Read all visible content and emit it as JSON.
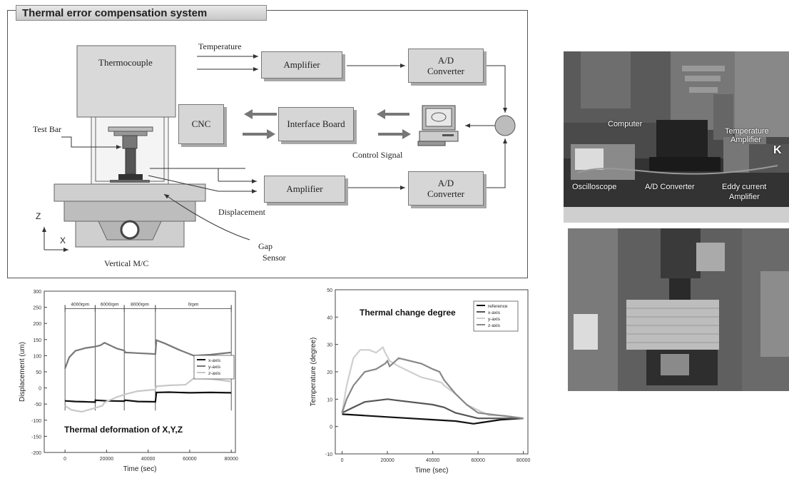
{
  "diagram": {
    "title": "Thermal error compensation system",
    "thermocouple": "Thermocouple",
    "temperature": "Temperature",
    "amplifier_top": "Amplifier",
    "adc_top_line1": "A/D",
    "adc_top_line2": "Converter",
    "cnc": "CNC",
    "interface_board": "Interface Board",
    "control_signal": "Control Signal",
    "test_bar": "Test Bar",
    "amplifier_bottom": "Amplifier",
    "adc_bottom_line1": "A/D",
    "adc_bottom_line2": "Converter",
    "displacement": "Displacement",
    "axis_z": "Z",
    "axis_x": "X",
    "gap_sensor_line1": "Gap",
    "gap_sensor_line2": "Sensor",
    "vertical_mc": "Vertical M/C"
  },
  "photos": {
    "computer": "Computer",
    "temperature_amplifier_line1": "Temperature",
    "temperature_amplifier_line2": "Amplifier",
    "ke": "K",
    "oscilloscope": "Oscilloscope",
    "ad_converter": "A/D Converter",
    "eddy_line1": "Eddy current",
    "eddy_line2": "Amplifier"
  },
  "chart_data": [
    {
      "type": "line",
      "annotation": "Thermal deformation of X,Y,Z",
      "xlabel": "Time (sec)",
      "ylabel": "Displacement (um)",
      "xlim": [
        -10000,
        82000
      ],
      "ylim": [
        -200,
        300
      ],
      "x_ticks": [
        "0",
        "20000",
        "40000",
        "60000",
        "80000"
      ],
      "y_ticks": [
        "300",
        "250",
        "200",
        "150",
        "100",
        "50",
        "0",
        "-50",
        "-100",
        "-150",
        "-200"
      ],
      "phase_labels": [
        "4000rpm",
        "6000rpm",
        "8000rpm",
        "0rpm"
      ],
      "phase_bounds": [
        0,
        14500,
        28500,
        43500,
        80000
      ],
      "series": [
        {
          "name": "x-axis",
          "color": "#111111",
          "x": [
            0,
            5000,
            10000,
            14500,
            14600,
            20000,
            28500,
            29000,
            35000,
            43500,
            44000,
            50000,
            60000,
            70000,
            80000
          ],
          "y": [
            -40,
            -42,
            -43,
            -44,
            -38,
            -40,
            -41,
            -38,
            -42,
            -43,
            -14,
            -13,
            -15,
            -14,
            -15
          ]
        },
        {
          "name": "y-axis",
          "color": "#777777",
          "x": [
            0,
            2000,
            5000,
            10000,
            14500,
            17000,
            19000,
            25000,
            28500,
            29000,
            35000,
            43500,
            44000,
            48000,
            55000,
            62000,
            70000,
            80000
          ],
          "y": [
            60,
            95,
            115,
            124,
            128,
            132,
            140,
            122,
            116,
            110,
            108,
            105,
            148,
            138,
            118,
            100,
            103,
            110
          ]
        },
        {
          "name": "z-axis",
          "color": "#c8c8c8",
          "x": [
            0,
            3000,
            8000,
            14500,
            18000,
            19000,
            25000,
            30000,
            35000,
            43500,
            44000,
            50000,
            58000,
            62000,
            70000,
            80000
          ],
          "y": [
            -55,
            -68,
            -74,
            -62,
            -55,
            -45,
            -28,
            -18,
            -10,
            -5,
            5,
            8,
            10,
            30,
            28,
            20
          ]
        }
      ]
    },
    {
      "type": "line",
      "annotation": "Thermal change degree",
      "xlabel": "Time (sec)",
      "ylabel": "Temperature (degree)",
      "xlim": [
        -3000,
        82000
      ],
      "ylim": [
        -10,
        50
      ],
      "x_ticks": [
        "0",
        "20000",
        "40000",
        "60000",
        "80000"
      ],
      "y_ticks": [
        "50",
        "40",
        "30",
        "20",
        "10",
        "0",
        "-10"
      ],
      "series": [
        {
          "name": "reference",
          "color": "#111111",
          "x": [
            0,
            10000,
            20000,
            30000,
            40000,
            50000,
            58000,
            62000,
            70000,
            80000
          ],
          "y": [
            4.5,
            4,
            3.5,
            3,
            2.5,
            2,
            1,
            1.5,
            2.5,
            3
          ]
        },
        {
          "name": "x-axis",
          "color": "#555555",
          "x": [
            0,
            5000,
            10000,
            15000,
            20000,
            25000,
            30000,
            40000,
            45000,
            50000,
            55000,
            60000,
            65000,
            70000,
            80000
          ],
          "y": [
            5,
            7,
            9,
            9.5,
            10,
            9.5,
            9,
            8,
            7,
            5,
            4,
            3,
            3,
            3,
            3
          ]
        },
        {
          "name": "y-axis",
          "color": "#cfcfcf",
          "x": [
            0,
            2000,
            5000,
            8000,
            12000,
            15000,
            18000,
            19000,
            21000,
            25000,
            30000,
            35000,
            40000,
            44000,
            45000,
            50000,
            55000,
            60000,
            65000,
            72000,
            80000
          ],
          "y": [
            5,
            15,
            25,
            28,
            28,
            27,
            29,
            27,
            24,
            22,
            20,
            18,
            17,
            16,
            15,
            12,
            8,
            6,
            4,
            4,
            3
          ]
        },
        {
          "name": "z-axis",
          "color": "#888888",
          "x": [
            0,
            2000,
            5000,
            10000,
            15000,
            19000,
            20000,
            21000,
            25000,
            30000,
            35000,
            40000,
            43000,
            45000,
            50000,
            55000,
            60000,
            70000,
            80000
          ],
          "y": [
            5,
            10,
            15,
            20,
            21,
            23,
            24,
            22,
            25,
            24,
            23,
            21,
            20,
            17,
            12,
            8,
            5,
            4,
            3
          ]
        }
      ]
    }
  ]
}
